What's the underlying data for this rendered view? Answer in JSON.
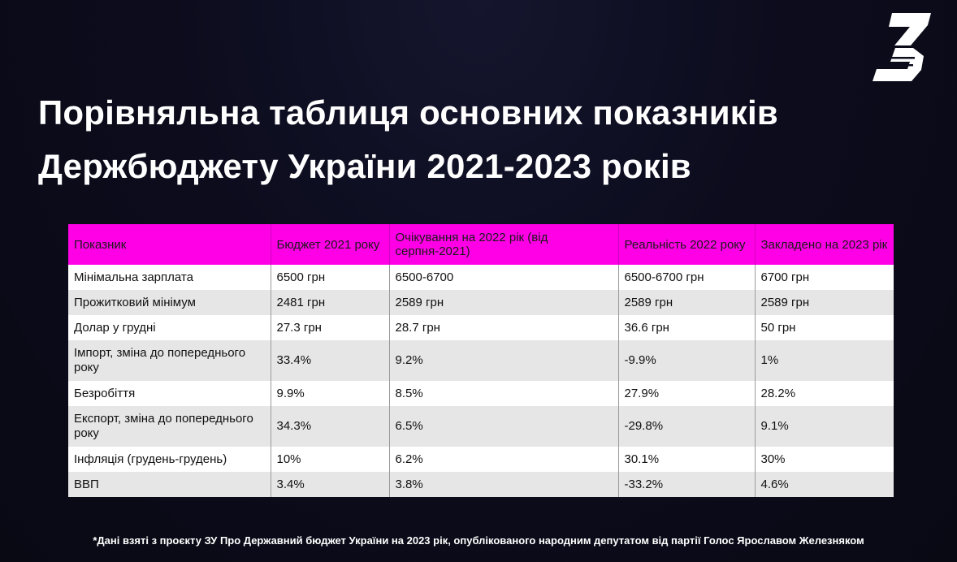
{
  "title": {
    "line1": "Порівняльна таблиця основних показників",
    "line2": "Держбюджету України 2021-2023 років"
  },
  "logo": {
    "icon": "stylized-Z-logo",
    "color": "#ffffff"
  },
  "table": {
    "header_color": "#ff00e6",
    "columns": [
      "Показник",
      "Бюджет 2021 року",
      "Очікування на 2022 рік (від серпня-2021)",
      "Реальність 2022 року",
      "Закладено на 2023 рік"
    ],
    "rows": [
      [
        "Мінімальна зарплата",
        "6500 грн",
        "6500-6700",
        "6500-6700 грн",
        "6700 грн"
      ],
      [
        "Прожитковий мінімум",
        "2481 грн",
        "2589 грн",
        "2589 грн",
        "2589 грн"
      ],
      [
        "Долар у грудні",
        "27.3 грн",
        "28.7 грн",
        "36.6 грн",
        "50 грн"
      ],
      [
        "Імпорт, зміна до попереднього року",
        "33.4%",
        "9.2%",
        "-9.9%",
        "1%"
      ],
      [
        "Безробіття",
        "9.9%",
        "8.5%",
        "27.9%",
        "28.2%"
      ],
      [
        "Експорт, зміна до попереднього року",
        "34.3%",
        "6.5%",
        "-29.8%",
        "9.1%"
      ],
      [
        "Інфляція (грудень-грудень)",
        "10%",
        "6.2%",
        "30.1%",
        "30%"
      ],
      [
        "ВВП",
        "3.4%",
        "3.8%",
        "-33.2%",
        "4.6%"
      ]
    ]
  },
  "footnote": "*Дані взяті з проєкту ЗУ Про Державний бюджет України на 2023 рік, опублікованого народним депутатом від партії Голос Ярославом Железняком"
}
